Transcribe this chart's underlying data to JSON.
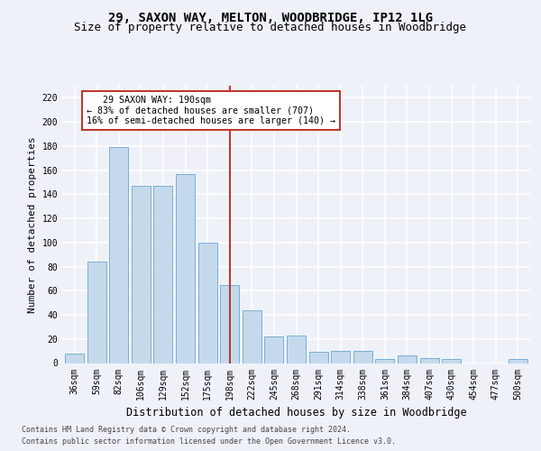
{
  "title1": "29, SAXON WAY, MELTON, WOODBRIDGE, IP12 1LG",
  "title2": "Size of property relative to detached houses in Woodbridge",
  "xlabel": "Distribution of detached houses by size in Woodbridge",
  "ylabel": "Number of detached properties",
  "footer1": "Contains HM Land Registry data © Crown copyright and database right 2024.",
  "footer2": "Contains public sector information licensed under the Open Government Licence v3.0.",
  "annotation_line1": "   29 SAXON WAY: 190sqm",
  "annotation_line2": "← 83% of detached houses are smaller (707)",
  "annotation_line3": "16% of semi-detached houses are larger (140) →",
  "bar_color": "#c5d9ed",
  "bar_edge_color": "#7aafd4",
  "highlight_color": "#c0392b",
  "categories": [
    "36sqm",
    "59sqm",
    "82sqm",
    "106sqm",
    "129sqm",
    "152sqm",
    "175sqm",
    "198sqm",
    "222sqm",
    "245sqm",
    "268sqm",
    "291sqm",
    "314sqm",
    "338sqm",
    "361sqm",
    "384sqm",
    "407sqm",
    "430sqm",
    "454sqm",
    "477sqm",
    "500sqm"
  ],
  "values": [
    8,
    84,
    179,
    147,
    147,
    157,
    100,
    65,
    44,
    22,
    23,
    9,
    10,
    10,
    3,
    6,
    4,
    3,
    0,
    0,
    3
  ],
  "highlight_index": 7,
  "ylim": [
    0,
    230
  ],
  "yticks": [
    0,
    20,
    40,
    60,
    80,
    100,
    120,
    140,
    160,
    180,
    200,
    220
  ],
  "bg_color": "#eef2f8",
  "grid_color": "#ffffff",
  "title_fontsize": 10,
  "subtitle_fontsize": 9,
  "axis_fontsize": 8,
  "tick_fontsize": 7,
  "footer_fontsize": 6
}
